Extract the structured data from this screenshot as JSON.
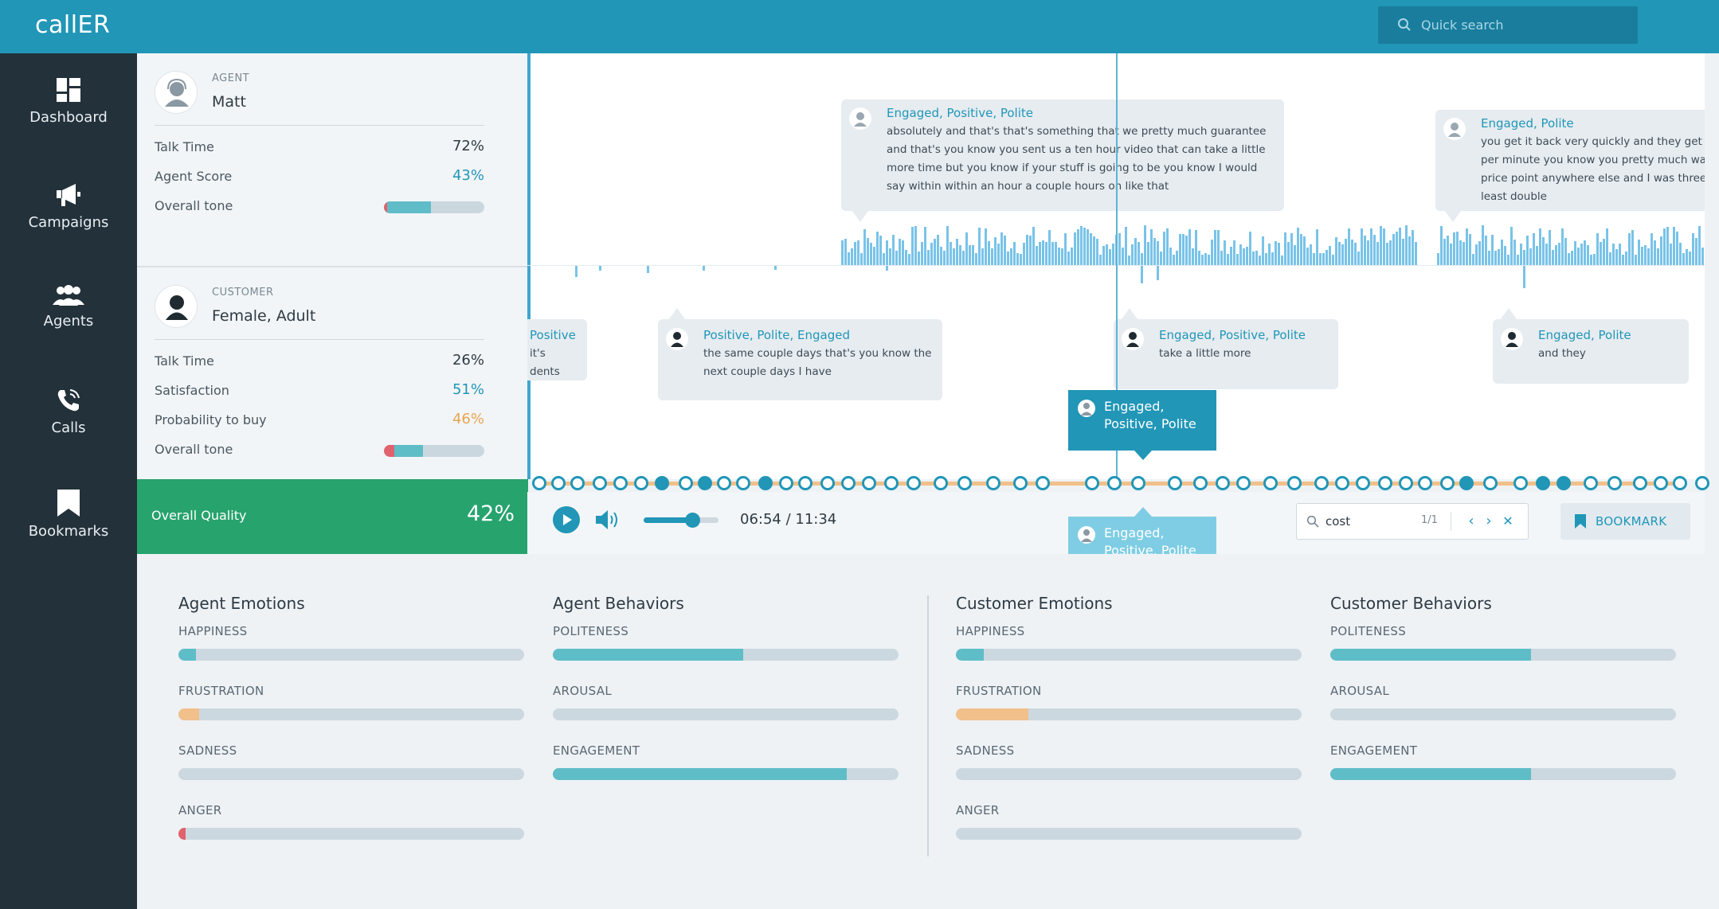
{
  "app": {
    "title": "callER"
  },
  "search": {
    "placeholder": "Quick search"
  },
  "nav": [
    {
      "label": "Dashboard",
      "icon": "dashboard-icon"
    },
    {
      "label": "Campaigns",
      "icon": "megaphone-icon"
    },
    {
      "label": "Agents",
      "icon": "agents-icon"
    },
    {
      "label": "Calls",
      "icon": "phone-icon"
    },
    {
      "label": "Bookmarks",
      "icon": "bookmark-icon"
    }
  ],
  "agent": {
    "role": "AGENT",
    "name": "Matt",
    "talk_time_label": "Talk Time",
    "talk_time": "72%",
    "score_label": "Agent Score",
    "score": "43%",
    "tone_label": "Overall tone",
    "tone_negative": 0.03,
    "tone_positive": 0.44
  },
  "customer": {
    "role": "CUSTOMER",
    "name": "Female, Adult",
    "talk_time_label": "Talk Time",
    "talk_time": "26%",
    "satisfaction_label": "Satisfaction",
    "satisfaction": "51%",
    "buy_label": "Probability to buy",
    "buy": "46%",
    "tone_label": "Overall tone",
    "tone_negative": 0.1,
    "tone_positive": 0.29
  },
  "quality": {
    "label": "Overall Quality",
    "value": "42%"
  },
  "transcript": {
    "agent_bubbles": [
      {
        "tags": "Engaged, Positive, Polite",
        "text": [
          "absolutely and that's that's something that we pretty much guarantee",
          "and that's you know you sent us a ten hour video that can take a little",
          "more time but you know if your stuff is going to be you know I would",
          "say within within an hour a couple hours on like that"
        ]
      },
      {
        "tags": "Engaged, Polite",
        "text": [
          "you get it back very quickly and they get a",
          "per minute you know you pretty much wa",
          "price point anywhere else and I was three",
          "least double"
        ]
      }
    ],
    "customer_bubbles": [
      {
        "tags": "Positive",
        "text": [
          "it's",
          "dents"
        ]
      },
      {
        "tags": "Positive, Polite, Engaged",
        "text": [
          "the same couple days that's you know the",
          "next couple days I have"
        ]
      },
      {
        "tags": "Engaged, Positive, Polite",
        "text": [
          "take a little more"
        ]
      },
      {
        "tags": "Engaged, Polite",
        "text": [
          "and they"
        ]
      }
    ],
    "popup_top": {
      "line1": "Engaged,",
      "line2": "Positive, Polite"
    },
    "popup_bottom": {
      "line1": "Engaged,",
      "line2": "Positive, Polite"
    }
  },
  "player": {
    "time": "06:54 / 11:34",
    "volume": 0.65,
    "find_query": "cost",
    "find_count": "1/1",
    "bookmark_label": "BOOKMARK"
  },
  "colors": {
    "accent": "#2196b7",
    "quality": "#27a36e",
    "teal": "#5fbdc8",
    "orange": "#f2c08a",
    "red": "#e0626d"
  },
  "metrics": {
    "agent_emotions": {
      "title": "Agent Emotions",
      "items": [
        {
          "label": "HAPPINESS",
          "value": 0.05,
          "color": "#5fbdc8"
        },
        {
          "label": "FRUSTRATION",
          "value": 0.06,
          "color": "#f2c08a"
        },
        {
          "label": "SADNESS",
          "value": 0.0,
          "color": "#5fbdc8"
        },
        {
          "label": "ANGER",
          "value": 0.02,
          "color": "#e0626d"
        }
      ]
    },
    "agent_behaviors": {
      "title": "Agent Behaviors",
      "items": [
        {
          "label": "POLITENESS",
          "value": 0.55,
          "color": "#5fbdc8"
        },
        {
          "label": "AROUSAL",
          "value": 0.0,
          "color": "#5fbdc8"
        },
        {
          "label": "ENGAGEMENT",
          "value": 0.85,
          "color": "#5fbdc8"
        }
      ]
    },
    "customer_emotions": {
      "title": "Customer Emotions",
      "items": [
        {
          "label": "HAPPINESS",
          "value": 0.08,
          "color": "#5fbdc8"
        },
        {
          "label": "FRUSTRATION",
          "value": 0.21,
          "color": "#f2c08a"
        },
        {
          "label": "SADNESS",
          "value": 0.0,
          "color": "#5fbdc8"
        },
        {
          "label": "ANGER",
          "value": 0.0,
          "color": "#e0626d"
        }
      ]
    },
    "customer_behaviors": {
      "title": "Customer Behaviors",
      "items": [
        {
          "label": "POLITENESS",
          "value": 0.58,
          "color": "#5fbdc8"
        },
        {
          "label": "AROUSAL",
          "value": 0.0,
          "color": "#5fbdc8"
        },
        {
          "label": "ENGAGEMENT",
          "value": 0.58,
          "color": "#5fbdc8"
        }
      ]
    }
  }
}
